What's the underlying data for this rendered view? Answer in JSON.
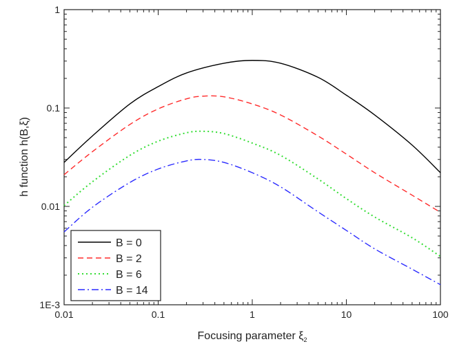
{
  "chart_data": {
    "type": "line",
    "xlabel": "Focusing parameter ξ",
    "xlabel_sub": "2",
    "ylabel": "h function h(B,ξ)",
    "xscale": "log",
    "yscale": "log",
    "xlim": [
      0.01,
      100
    ],
    "ylim": [
      0.001,
      1
    ],
    "xticks": [
      {
        "value": 0.01,
        "label": "0.01"
      },
      {
        "value": 0.1,
        "label": "0.1"
      },
      {
        "value": 1,
        "label": "1"
      },
      {
        "value": 10,
        "label": "10"
      },
      {
        "value": 100,
        "label": "100"
      }
    ],
    "yticks": [
      {
        "value": 0.001,
        "label": "1E-3"
      },
      {
        "value": 0.01,
        "label": "0.01"
      },
      {
        "value": 0.1,
        "label": "0.1"
      },
      {
        "value": 1,
        "label": "1"
      }
    ],
    "grid": false,
    "legend_position": "bottom-left",
    "series": [
      {
        "name": "B = 0",
        "color": "#000000",
        "dash": "solid",
        "x": [
          0.01,
          0.02,
          0.05,
          0.1,
          0.2,
          0.5,
          1,
          2,
          5,
          10,
          20,
          50,
          100
        ],
        "y": [
          0.028,
          0.052,
          0.11,
          0.165,
          0.227,
          0.285,
          0.305,
          0.285,
          0.205,
          0.135,
          0.085,
          0.042,
          0.022
        ]
      },
      {
        "name": "B = 2",
        "color": "#ff2a2a",
        "dash": "dashed",
        "x": [
          0.01,
          0.02,
          0.05,
          0.1,
          0.2,
          0.3,
          0.5,
          1,
          2,
          5,
          10,
          20,
          50,
          100
        ],
        "y": [
          0.021,
          0.036,
          0.068,
          0.098,
          0.124,
          0.132,
          0.13,
          0.11,
          0.085,
          0.052,
          0.034,
          0.022,
          0.013,
          0.0087
        ]
      },
      {
        "name": "B = 6",
        "color": "#33dd33",
        "dash": "dotted",
        "x": [
          0.01,
          0.02,
          0.05,
          0.1,
          0.2,
          0.3,
          0.5,
          1,
          2,
          5,
          10,
          20,
          50,
          100
        ],
        "y": [
          0.0102,
          0.0178,
          0.033,
          0.046,
          0.056,
          0.058,
          0.055,
          0.044,
          0.033,
          0.019,
          0.012,
          0.0078,
          0.0048,
          0.0031
        ]
      },
      {
        "name": "B = 14",
        "color": "#2a2aff",
        "dash": "dashdot",
        "x": [
          0.01,
          0.02,
          0.05,
          0.1,
          0.2,
          0.3,
          0.5,
          1,
          2,
          5,
          10,
          20,
          50,
          100
        ],
        "y": [
          0.0055,
          0.0098,
          0.0175,
          0.024,
          0.029,
          0.03,
          0.028,
          0.022,
          0.0158,
          0.0088,
          0.0057,
          0.0037,
          0.0023,
          0.0016
        ]
      }
    ]
  }
}
